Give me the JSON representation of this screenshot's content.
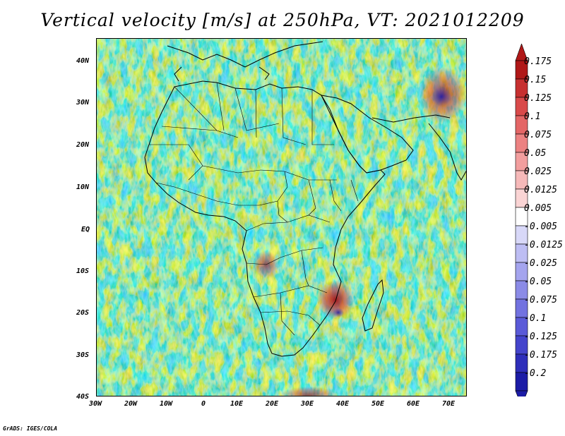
{
  "title": "Vertical velocity [m/s] at 250hPa, VT: 2021012209",
  "credit": "GrADS: IGES/COLA",
  "map": {
    "lon_range": [
      -30,
      75
    ],
    "lat_range": [
      -40,
      45
    ],
    "lat_ticks": [
      "40N",
      "30N",
      "20N",
      "10N",
      "EQ",
      "10S",
      "20S",
      "30S",
      "40S"
    ],
    "lon_ticks": [
      "30W",
      "20W",
      "10W",
      "0",
      "10E",
      "20E",
      "30E",
      "40E",
      "50E",
      "60E",
      "70E"
    ]
  },
  "colorbar": {
    "labels": [
      "0.175",
      "0.15",
      "0.125",
      "0.1",
      "0.075",
      "0.05",
      "0.025",
      "0.0125",
      "0.005",
      "-0.005",
      "-0.0125",
      "-0.025",
      "-0.05",
      "-0.075",
      "-0.1",
      "-0.125",
      "-0.175",
      "-0.2"
    ],
    "colors": [
      "#b01818",
      "#c73030",
      "#d94a4a",
      "#e46666",
      "#ec8282",
      "#f29e9e",
      "#f6b9b9",
      "#fad4d4",
      "#ffffff",
      "#d8d8f8",
      "#bdbdf3",
      "#a4a4ee",
      "#8b8be7",
      "#7272e0",
      "#5a5ad8",
      "#4444cc",
      "#2e2eba",
      "#1c1ca6"
    ]
  }
}
